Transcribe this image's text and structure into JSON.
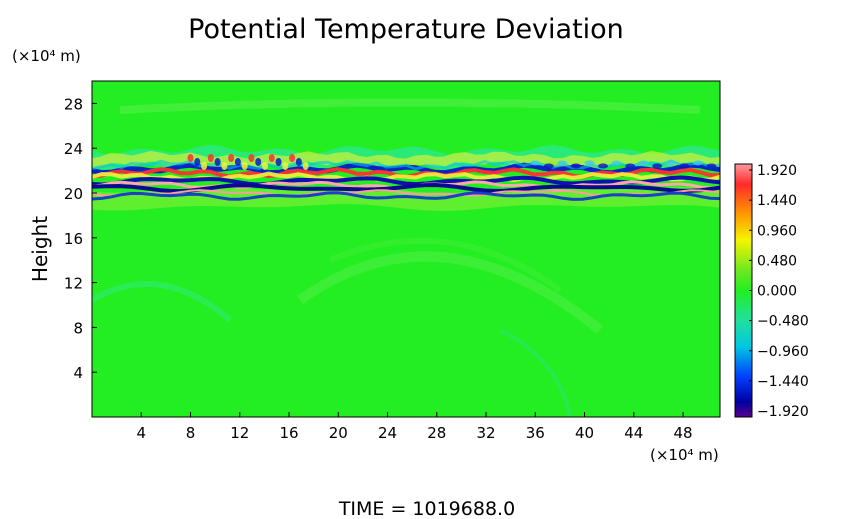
{
  "chart_data": {
    "type": "heatmap",
    "title": "Potential Temperature Deviation",
    "ylabel": "Height",
    "xlabel": "",
    "x_unit": "(×10⁴ m)",
    "y_unit": "(×10⁴ m)",
    "xlim": [
      0,
      51
    ],
    "ylim": [
      0,
      30
    ],
    "xticks": [
      4,
      8,
      12,
      16,
      20,
      24,
      28,
      32,
      36,
      40,
      44,
      48
    ],
    "yticks": [
      4,
      8,
      12,
      16,
      20,
      24,
      28
    ],
    "colorbar": {
      "labels": [
        "1.920",
        "1.440",
        "0.960",
        "0.480",
        "0.000",
        "−0.480",
        "−0.960",
        "−1.440",
        "−1.920"
      ],
      "values": [
        1.92,
        1.44,
        0.96,
        0.48,
        0.0,
        -0.48,
        -0.96,
        -1.44,
        -1.92
      ]
    },
    "footer": "TIME = 1019688.0"
  },
  "colors": {
    "background_field": "#22ee22",
    "positive_peak": "#ff5050",
    "negative_peak": "#1010c0"
  }
}
